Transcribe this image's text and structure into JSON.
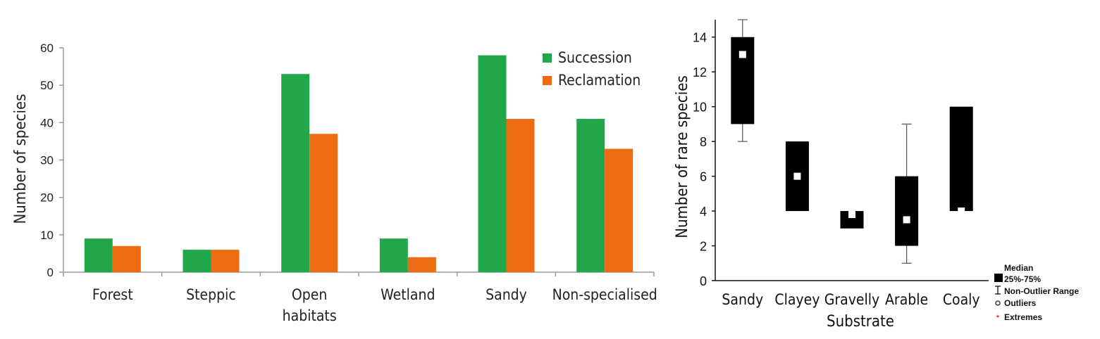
{
  "chart_data": [
    {
      "type": "bar",
      "ylabel": "Number of species",
      "xlabel": "",
      "ylim": [
        0,
        60
      ],
      "yticks": [
        0,
        10,
        20,
        30,
        40,
        50,
        60
      ],
      "categories": [
        [
          "Forest"
        ],
        [
          "Steppic"
        ],
        [
          "Open",
          "habitats"
        ],
        [
          "Wetland"
        ],
        [
          "Sandy"
        ],
        [
          "Non-specialised"
        ]
      ],
      "series": [
        {
          "name": "Succession",
          "color": "#22a84a",
          "values": [
            9,
            6,
            53,
            9,
            58,
            41
          ]
        },
        {
          "name": "Reclamation",
          "color": "#ed6c12",
          "values": [
            7,
            6,
            37,
            4,
            41,
            33
          ]
        }
      ],
      "legend": "top-right",
      "grid": false
    },
    {
      "type": "box",
      "ylabel": "Number of rare species",
      "xlabel": "Substrate",
      "ylim": [
        0,
        15
      ],
      "yticks": [
        0,
        2,
        4,
        6,
        8,
        10,
        12,
        14
      ],
      "categories": [
        "Sandy",
        "Clayey",
        "Gravelly",
        "Arable",
        "Coaly"
      ],
      "boxes": [
        {
          "min": 8,
          "q1": 9,
          "median": 13,
          "q3": 14,
          "max": 15
        },
        {
          "min": 4,
          "q1": 4,
          "median": 6,
          "q3": 8,
          "max": 8
        },
        {
          "min": 3,
          "q1": 3,
          "median": 3.8,
          "q3": 4,
          "max": 4
        },
        {
          "min": 1,
          "q1": 2,
          "median": 3.5,
          "q3": 6,
          "max": 9
        },
        {
          "min": 4,
          "q1": 4,
          "median": 4,
          "q3": 10,
          "max": 10
        }
      ],
      "box_color": "#000000",
      "median_color": "#ffffff",
      "legend": {
        "position": "bottom-right",
        "entries": [
          "Median",
          "25%-75%",
          "Non-Outlier Range",
          "Outliers",
          "Extremes"
        ]
      },
      "grid": false
    }
  ]
}
